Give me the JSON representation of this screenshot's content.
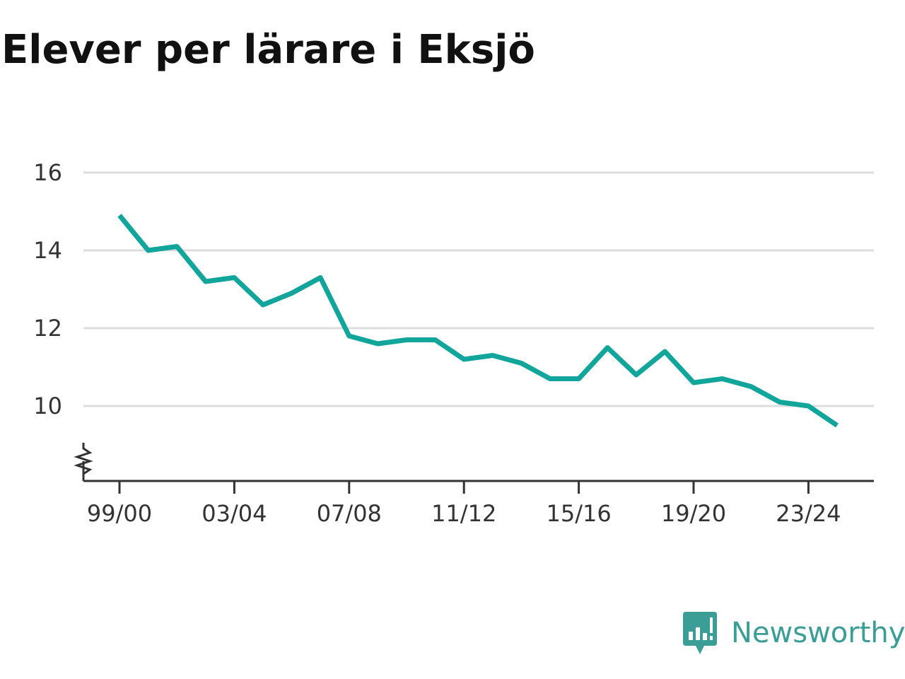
{
  "colors": {
    "line": "#11a59b",
    "grid": "#dddddd",
    "axis": "#333333",
    "brand": "#3a9d96"
  },
  "brand": {
    "name": "Newsworthy",
    "icon": "bar-chart-speech-bubble-icon"
  },
  "chart_data": {
    "type": "line",
    "title": "Elever per lärare i Eksjö",
    "xlabel": "",
    "ylabel": "",
    "x": [
      "99/00",
      "00/01",
      "01/02",
      "02/03",
      "03/04",
      "04/05",
      "05/06",
      "06/07",
      "07/08",
      "08/09",
      "09/10",
      "10/11",
      "11/12",
      "12/13",
      "13/14",
      "14/15",
      "15/16",
      "16/17",
      "17/18",
      "18/19",
      "19/20",
      "20/21",
      "21/22",
      "22/23",
      "23/24",
      "24/25"
    ],
    "x_tick_labels": [
      "99/00",
      "03/04",
      "07/08",
      "11/12",
      "15/16",
      "19/20",
      "23/24"
    ],
    "y_ticks": [
      10,
      12,
      14,
      16
    ],
    "ylim": [
      8,
      16
    ],
    "axis_break": true,
    "grid": true,
    "series": [
      {
        "values": [
          14.9,
          14.0,
          14.1,
          13.2,
          13.3,
          12.6,
          12.9,
          13.3,
          11.8,
          11.6,
          11.7,
          11.7,
          11.2,
          11.3,
          11.1,
          10.7,
          10.7,
          11.5,
          10.8,
          11.4,
          10.6,
          10.7,
          10.5,
          10.1,
          10.0,
          9.5
        ]
      }
    ]
  }
}
